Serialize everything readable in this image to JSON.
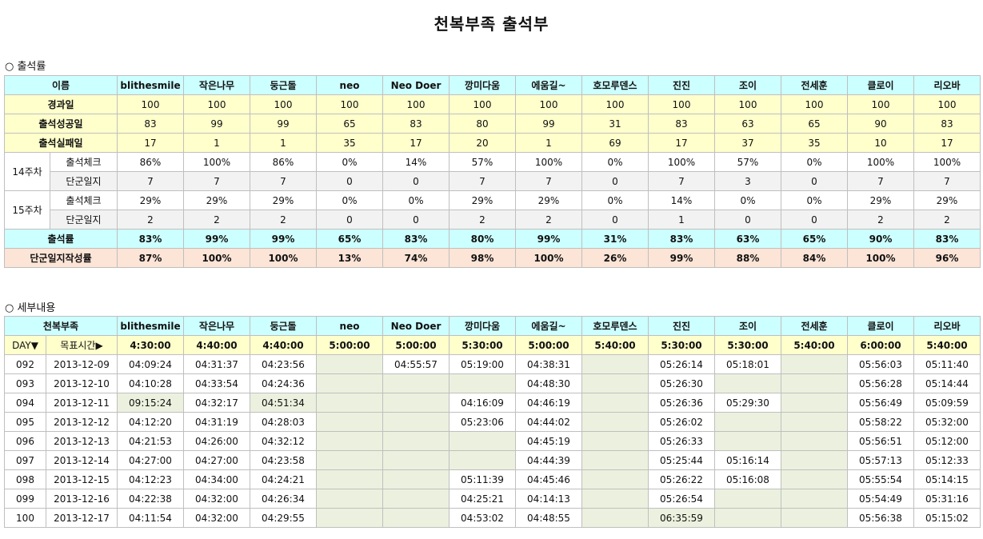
{
  "title": "천복부족 출석부",
  "section1_label": "○ 출석률",
  "section2_label": "○ 세부내용",
  "members": [
    "blithesmile",
    "작은나무",
    "둥근돌",
    "neo",
    "Neo Doer",
    "깡미다움",
    "에움길~",
    "호모루덴스",
    "진진",
    "조이",
    "전세훈",
    "클로이",
    "리오바"
  ],
  "rate_table": {
    "name_header": "이름",
    "elapsed": {
      "label": "경과일",
      "values": [
        "100",
        "100",
        "100",
        "100",
        "100",
        "100",
        "100",
        "100",
        "100",
        "100",
        "100",
        "100",
        "100"
      ]
    },
    "success": {
      "label": "출석성공일",
      "values": [
        "83",
        "99",
        "99",
        "65",
        "83",
        "80",
        "99",
        "31",
        "83",
        "63",
        "65",
        "90",
        "83"
      ]
    },
    "fail": {
      "label": "출석실패일",
      "values": [
        "17",
        "1",
        "1",
        "35",
        "17",
        "20",
        "1",
        "69",
        "17",
        "37",
        "35",
        "10",
        "17"
      ]
    },
    "weeks": [
      {
        "label": "14주차",
        "check_label": "출석체크",
        "check": [
          "86%",
          "100%",
          "86%",
          "0%",
          "14%",
          "57%",
          "100%",
          "0%",
          "100%",
          "57%",
          "0%",
          "100%",
          "100%"
        ],
        "diary_label": "단군일지",
        "diary": [
          "7",
          "7",
          "7",
          "0",
          "0",
          "7",
          "7",
          "0",
          "7",
          "3",
          "0",
          "7",
          "7"
        ]
      },
      {
        "label": "15주차",
        "check_label": "출석체크",
        "check": [
          "29%",
          "29%",
          "29%",
          "0%",
          "0%",
          "29%",
          "29%",
          "0%",
          "14%",
          "0%",
          "0%",
          "29%",
          "29%"
        ],
        "diary_label": "단군일지",
        "diary": [
          "2",
          "2",
          "2",
          "0",
          "0",
          "2",
          "2",
          "0",
          "1",
          "0",
          "0",
          "2",
          "2"
        ]
      }
    ],
    "attendance": {
      "label": "출석률",
      "values": [
        "83%",
        "99%",
        "99%",
        "65%",
        "83%",
        "80%",
        "99%",
        "31%",
        "83%",
        "63%",
        "65%",
        "90%",
        "83%"
      ]
    },
    "diary_rate": {
      "label": "단군일지작성률",
      "values": [
        "87%",
        "100%",
        "100%",
        "13%",
        "74%",
        "98%",
        "100%",
        "26%",
        "99%",
        "88%",
        "84%",
        "100%",
        "96%"
      ]
    }
  },
  "detail_table": {
    "tribe_header": "천복부족",
    "day_label": "DAY▼",
    "target_label": "목표시간▶",
    "targets": [
      "4:30:00",
      "4:40:00",
      "4:40:00",
      "5:00:00",
      "5:00:00",
      "5:30:00",
      "5:00:00",
      "5:40:00",
      "5:30:00",
      "5:30:00",
      "5:40:00",
      "6:00:00",
      "5:40:00"
    ],
    "rows": [
      {
        "day": "092",
        "date": "2013-12-09",
        "times": [
          "04:09:24",
          "04:31:37",
          "04:23:56",
          "",
          "04:55:57",
          "05:19:00",
          "04:38:31",
          "",
          "05:26:14",
          "05:18:01",
          "",
          "05:56:03",
          "05:11:40"
        ]
      },
      {
        "day": "093",
        "date": "2013-12-10",
        "times": [
          "04:10:28",
          "04:33:54",
          "04:24:36",
          "",
          "",
          "",
          "04:48:30",
          "",
          "05:26:30",
          "",
          "",
          "05:56:28",
          "05:14:44"
        ]
      },
      {
        "day": "094",
        "date": "2013-12-11",
        "times": [
          "09:15:24",
          "04:32:17",
          "04:51:34",
          "",
          "",
          "04:16:09",
          "04:46:19",
          "",
          "05:26:36",
          "05:29:30",
          "",
          "05:56:49",
          "05:09:59"
        ]
      },
      {
        "day": "095",
        "date": "2013-12-12",
        "times": [
          "04:12:20",
          "04:31:19",
          "04:28:03",
          "",
          "",
          "05:23:06",
          "04:44:02",
          "",
          "05:26:02",
          "",
          "",
          "05:58:22",
          "05:32:00"
        ]
      },
      {
        "day": "096",
        "date": "2013-12-13",
        "times": [
          "04:21:53",
          "04:26:00",
          "04:32:12",
          "",
          "",
          "",
          "04:45:19",
          "",
          "05:26:33",
          "",
          "",
          "05:56:51",
          "05:12:00"
        ]
      },
      {
        "day": "097",
        "date": "2013-12-14",
        "times": [
          "04:27:00",
          "04:27:00",
          "04:23:58",
          "",
          "",
          "",
          "04:44:39",
          "",
          "05:25:44",
          "05:16:14",
          "",
          "05:57:13",
          "05:12:33"
        ]
      },
      {
        "day": "098",
        "date": "2013-12-15",
        "times": [
          "04:12:23",
          "04:34:00",
          "04:24:21",
          "",
          "",
          "05:11:39",
          "04:45:46",
          "",
          "05:26:22",
          "05:16:08",
          "",
          "05:55:54",
          "05:14:15"
        ]
      },
      {
        "day": "099",
        "date": "2013-12-16",
        "times": [
          "04:22:38",
          "04:32:00",
          "04:26:34",
          "",
          "",
          "04:25:21",
          "04:14:13",
          "",
          "05:26:54",
          "",
          "",
          "05:54:49",
          "05:31:16"
        ]
      },
      {
        "day": "100",
        "date": "2013-12-17",
        "times": [
          "04:11:54",
          "04:32:00",
          "04:29:55",
          "",
          "",
          "04:53:02",
          "04:48:55",
          "",
          "06:35:59",
          "",
          "",
          "05:56:38",
          "05:15:02"
        ]
      }
    ]
  },
  "colors": {
    "header_cyan": "#ccffff",
    "row_yellow": "#ffffcc",
    "row_peach": "#fce4d6",
    "row_gray": "#f2f2f2",
    "empty_green": "#ebf1de"
  }
}
